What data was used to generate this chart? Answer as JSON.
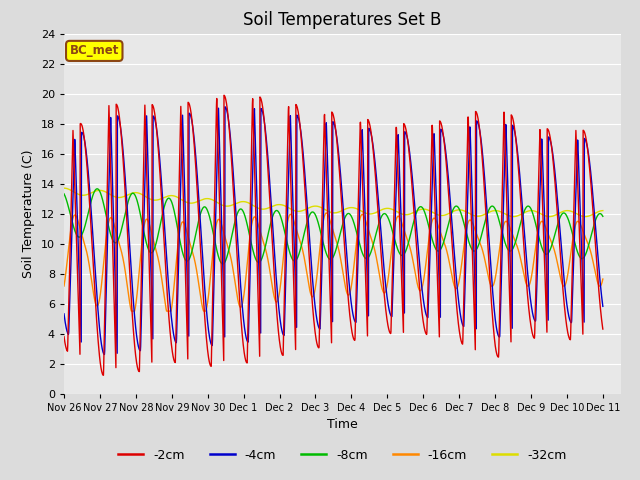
{
  "title": "Soil Temperatures Set B",
  "xlabel": "Time",
  "ylabel": "Soil Temperature (C)",
  "ylim": [
    0,
    24
  ],
  "background_color": "#dcdcdc",
  "plot_bg_color": "#e8e8e8",
  "series": {
    "-2cm": {
      "color": "#dd0000",
      "lw": 1.0
    },
    "-4cm": {
      "color": "#0000cc",
      "lw": 1.0
    },
    "-8cm": {
      "color": "#00bb00",
      "lw": 1.0
    },
    "-16cm": {
      "color": "#ff8800",
      "lw": 1.0
    },
    "-32cm": {
      "color": "#dddd00",
      "lw": 1.0
    }
  },
  "xtick_labels": [
    "Nov 26",
    "Nov 27",
    "Nov 28",
    "Nov 29",
    "Nov 30",
    "Dec 1",
    "Dec 2",
    "Dec 3",
    "Dec 4",
    "Dec 5",
    "Dec 6",
    "Dec 7",
    "Dec 8",
    "Dec 9",
    "Dec 10",
    "Dec 11"
  ],
  "annotation_text": "BC_met",
  "annotation_bg": "#ffff00",
  "annotation_border": "#8b4513"
}
